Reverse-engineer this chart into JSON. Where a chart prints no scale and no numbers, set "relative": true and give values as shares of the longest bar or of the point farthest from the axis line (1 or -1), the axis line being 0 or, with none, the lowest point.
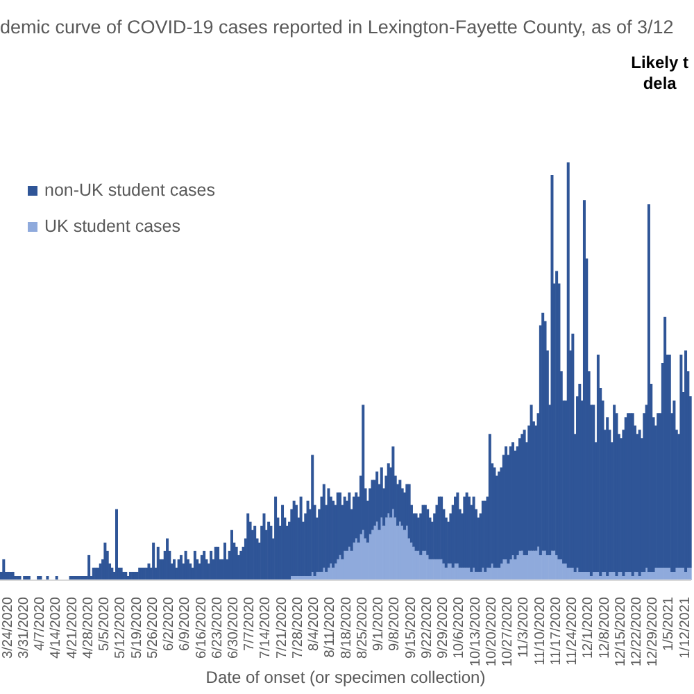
{
  "chart_data": {
    "type": "bar",
    "title": "demic curve of COVID-19 cases reported in Lexington-Fayette County, as of 3/12",
    "xlabel": "Date of onset (or specimen collection)",
    "annotations": [
      "Likely t\ndela"
    ],
    "relative": true,
    "stacked": true,
    "legend": "top left",
    "categories": [
      null,
      null,
      null,
      "3/24/2020",
      null,
      null,
      null,
      null,
      null,
      null,
      "3/31/2020",
      null,
      null,
      null,
      null,
      null,
      null,
      "4/7/2020",
      null,
      null,
      null,
      null,
      null,
      null,
      "4/14/2020",
      null,
      null,
      null,
      null,
      null,
      null,
      "4/21/2020",
      null,
      null,
      null,
      null,
      null,
      null,
      "4/28/2020",
      null,
      null,
      null,
      null,
      null,
      null,
      "5/5/2020",
      null,
      null,
      null,
      null,
      null,
      null,
      "5/12/2020",
      null,
      null,
      null,
      null,
      null,
      null,
      "5/19/2020",
      null,
      null,
      null,
      null,
      null,
      null,
      "5/26/2020",
      null,
      null,
      null,
      null,
      null,
      null,
      "6/2/2020",
      null,
      null,
      null,
      null,
      null,
      null,
      "6/9/2020",
      null,
      null,
      null,
      null,
      null,
      null,
      "6/16/2020",
      null,
      null,
      null,
      null,
      null,
      null,
      "6/23/2020",
      null,
      null,
      null,
      null,
      null,
      null,
      "6/30/2020",
      null,
      null,
      null,
      null,
      null,
      null,
      "7/7/2020",
      null,
      null,
      null,
      null,
      null,
      null,
      "7/14/2020",
      null,
      null,
      null,
      null,
      null,
      null,
      "7/21/2020",
      null,
      null,
      null,
      null,
      null,
      null,
      "7/28/2020",
      null,
      null,
      null,
      null,
      null,
      null,
      "8/4/2020",
      null,
      null,
      null,
      null,
      null,
      null,
      "8/11/2020",
      null,
      null,
      null,
      null,
      null,
      null,
      "8/18/2020",
      null,
      null,
      null,
      null,
      null,
      null,
      "8/25/2020",
      null,
      null,
      null,
      null,
      null,
      null,
      "9/1/2020",
      null,
      null,
      null,
      null,
      null,
      null,
      "9/8/2020",
      null,
      null,
      null,
      null,
      null,
      null,
      "9/15/2020",
      null,
      null,
      null,
      null,
      null,
      null,
      "9/22/2020",
      null,
      null,
      null,
      null,
      null,
      null,
      "9/29/2020",
      null,
      null,
      null,
      null,
      null,
      null,
      "10/6/2020",
      null,
      null,
      null,
      null,
      null,
      null,
      "10/13/2020",
      null,
      null,
      null,
      null,
      null,
      null,
      "10/20/2020",
      null,
      null,
      null,
      null,
      null,
      null,
      "10/27/2020",
      null,
      null,
      null,
      null,
      null,
      null,
      "11/3/2020",
      null,
      null,
      null,
      null,
      null,
      null,
      "11/10/2020",
      null,
      null,
      null,
      null,
      null,
      null,
      "11/17/2020",
      null,
      null,
      null,
      null,
      null,
      null,
      "11/24/2020",
      null,
      null,
      null,
      null,
      null,
      null,
      "12/1/2020",
      null,
      null,
      null,
      null,
      null,
      null,
      "12/8/2020",
      null,
      null,
      null,
      null,
      null,
      null,
      "12/15/2020",
      null,
      null,
      null,
      null,
      null,
      null,
      "12/22/2020",
      null,
      null,
      null,
      null,
      null,
      null,
      "12/29/2020",
      null,
      null,
      null,
      null,
      null,
      null,
      "1/5/2021",
      null,
      null,
      null,
      null,
      null,
      null,
      "1/12/2021",
      null,
      null
    ],
    "series": [
      {
        "name": "UK student cases",
        "color": "#8faadc",
        "values": [
          0,
          0,
          0,
          0,
          0,
          0,
          0,
          0,
          0,
          0,
          0,
          0,
          0,
          0,
          0,
          0,
          0,
          0,
          0,
          0,
          0,
          0,
          0,
          0,
          0,
          0,
          0,
          0,
          0,
          0,
          0,
          0,
          0,
          0,
          0,
          0,
          0,
          0,
          0,
          0,
          0,
          0,
          0,
          0,
          0,
          0,
          0,
          0,
          0,
          0,
          0,
          0,
          0,
          0,
          0,
          0,
          0,
          0,
          0,
          0,
          0,
          0,
          0,
          0,
          0,
          0,
          0,
          0,
          0,
          0,
          0,
          0,
          0,
          0,
          0,
          0,
          0,
          0,
          0,
          0,
          0,
          0,
          0,
          0,
          0,
          0,
          0,
          0,
          0,
          0,
          0,
          0,
          0,
          0,
          0,
          0,
          0,
          0,
          0,
          0,
          0,
          0,
          0,
          0,
          0,
          0,
          0,
          0,
          0,
          0,
          0,
          0,
          0,
          0,
          0,
          0,
          0,
          0,
          0,
          0,
          0,
          0,
          0,
          0,
          0,
          0,
          0.01,
          0.01,
          0.01,
          0.01,
          0.01,
          0.01,
          0.01,
          0.01,
          0.01,
          0.02,
          0.01,
          0.02,
          0.02,
          0.02,
          0.03,
          0.02,
          0.03,
          0.04,
          0.03,
          0.04,
          0.05,
          0.06,
          0.05,
          0.07,
          0.07,
          0.08,
          0.07,
          0.09,
          0.1,
          0.09,
          0.11,
          0.12,
          0.1,
          0.09,
          0.11,
          0.12,
          0.13,
          0.14,
          0.12,
          0.15,
          0.13,
          0.15,
          0.16,
          0.15,
          0.17,
          0.15,
          0.13,
          0.14,
          0.13,
          0.12,
          0.13,
          0.1,
          0.09,
          0.08,
          0.07,
          0.07,
          0.06,
          0.07,
          0.07,
          0.06,
          0.05,
          0.05,
          0.05,
          0.05,
          0.05,
          0.05,
          0.04,
          0.03,
          0.04,
          0.04,
          0.03,
          0.04,
          0.04,
          0.03,
          0.03,
          0.03,
          0.03,
          0.03,
          0.02,
          0.03,
          0.02,
          0.02,
          0.02,
          0.03,
          0.02,
          0.03,
          0.03,
          0.04,
          0.03,
          0.03,
          0.03,
          0.04,
          0.05,
          0.05,
          0.04,
          0.05,
          0.06,
          0.05,
          0.06,
          0.07,
          0.07,
          0.06,
          0.06,
          0.07,
          0.07,
          0.07,
          0.07,
          0.08,
          0.06,
          0.07,
          0.07,
          0.06,
          0.06,
          0.07,
          0.07,
          0.06,
          0.05,
          0.05,
          0.04,
          0.04,
          0.03,
          0.03,
          0.03,
          0.02,
          0.03,
          0.02,
          0.02,
          0.02,
          0.02,
          0.02,
          0.01,
          0.02,
          0.02,
          0.02,
          0.01,
          0.02,
          0.02,
          0.01,
          0.02,
          0.02,
          0.02,
          0.01,
          0.02,
          0.02,
          0.01,
          0.02,
          0.02,
          0.02,
          0.01,
          0.02,
          0.02,
          0.01,
          0.02,
          0.02,
          0.03,
          0.02,
          0.02,
          0.02,
          0.03,
          0.03,
          0.03,
          0.03,
          0.03,
          0.03,
          0.03,
          0.02,
          0.02,
          0.03,
          0.03,
          0.03,
          0.03,
          0.02,
          0.03,
          0.03
        ]
      },
      {
        "name": "non-UK student cases",
        "color": "#2f5597",
        "values": [
          0.02,
          0.05,
          0.02,
          0.02,
          0.02,
          0.02,
          0.01,
          0.01,
          0.01,
          0.0,
          0.01,
          0.01,
          0.01,
          0.0,
          0,
          0,
          0.01,
          0.01,
          0,
          0,
          0.01,
          0,
          0,
          0,
          0.01,
          0,
          0,
          0,
          0,
          0,
          0.01,
          0.01,
          0.01,
          0.01,
          0.01,
          0.01,
          0.01,
          0.01,
          0.06,
          0.01,
          0.03,
          0.03,
          0.03,
          0.04,
          0.05,
          0.09,
          0.07,
          0.04,
          0.03,
          0.02,
          0.17,
          0.03,
          0.03,
          0.02,
          0.02,
          0.01,
          0.02,
          0.02,
          0.02,
          0.02,
          0.03,
          0.03,
          0.03,
          0.03,
          0.04,
          0.03,
          0.09,
          0.03,
          0.08,
          0.05,
          0.05,
          0.07,
          0.1,
          0.07,
          0.04,
          0.05,
          0.03,
          0.05,
          0.06,
          0.04,
          0.07,
          0.05,
          0.04,
          0.03,
          0.07,
          0.05,
          0.04,
          0.06,
          0.07,
          0.05,
          0.04,
          0.07,
          0.05,
          0.08,
          0.08,
          0.05,
          0.05,
          0.09,
          0.05,
          0.07,
          0.12,
          0.09,
          0.08,
          0.06,
          0.07,
          0.08,
          0.1,
          0.16,
          0.14,
          0.12,
          0.13,
          0.1,
          0.09,
          0.13,
          0.16,
          0.12,
          0.14,
          0.13,
          0.1,
          0.2,
          0.15,
          0.13,
          0.18,
          0.15,
          0.13,
          0.14,
          0.16,
          0.18,
          0.17,
          0.14,
          0.19,
          0.13,
          0.15,
          0.18,
          0.16,
          0.28,
          0.17,
          0.13,
          0.15,
          0.18,
          0.2,
          0.16,
          0.19,
          0.16,
          0.16,
          0.14,
          0.16,
          0.15,
          0.13,
          0.13,
          0.12,
          0.13,
          0.1,
          0.11,
          0.11,
          0.11,
          0.14,
          0.3,
          0.12,
          0.1,
          0.11,
          0.12,
          0.11,
          0.12,
          0.11,
          0.12,
          0.09,
          0.1,
          0.12,
          0.12,
          0.15,
          0.1,
          0.1,
          0.1,
          0.09,
          0.09,
          0.1,
          0.13,
          0.09,
          0.08,
          0.09,
          0.08,
          0.1,
          0.11,
          0.11,
          0.11,
          0.1,
          0.09,
          0.11,
          0.13,
          0.15,
          0.15,
          0.13,
          0.12,
          0.1,
          0.12,
          0.15,
          0.16,
          0.17,
          0.14,
          0.13,
          0.17,
          0.18,
          0.17,
          0.16,
          0.17,
          0.15,
          0.13,
          0.14,
          0.16,
          0.17,
          0.17,
          0.32,
          0.24,
          0.24,
          0.22,
          0.23,
          0.23,
          0.25,
          0.27,
          0.26,
          0.27,
          0.27,
          0.26,
          0.26,
          0.27,
          0.28,
          0.3,
          0.27,
          0.3,
          0.35,
          0.31,
          0.3,
          0.32,
          0.55,
          0.57,
          0.55,
          0.49,
          0.36,
          0.9,
          0.64,
          0.68,
          0.66,
          0.45,
          0.39,
          0.39,
          0.97,
          0.52,
          0.56,
          0.33,
          0.41,
          0.45,
          0.41,
          0.89,
          0.75,
          0.48,
          0.41,
          0.4,
          0.31,
          0.52,
          0.45,
          0.41,
          0.34,
          0.38,
          0.34,
          0.31,
          0.4,
          0.39,
          0.33,
          0.32,
          0.35,
          0.37,
          0.38,
          0.38,
          0.39,
          0.35,
          0.33,
          0.35,
          0.32,
          0.38,
          0.39,
          0.88,
          0.45,
          0.37,
          0.34,
          0.37,
          0.37,
          0.49,
          0.6,
          0.51,
          0.51,
          0.38,
          0.41,
          0.33,
          0.32,
          0.51,
          0.42,
          0.53,
          0.47,
          0.41
        ]
      }
    ]
  }
}
